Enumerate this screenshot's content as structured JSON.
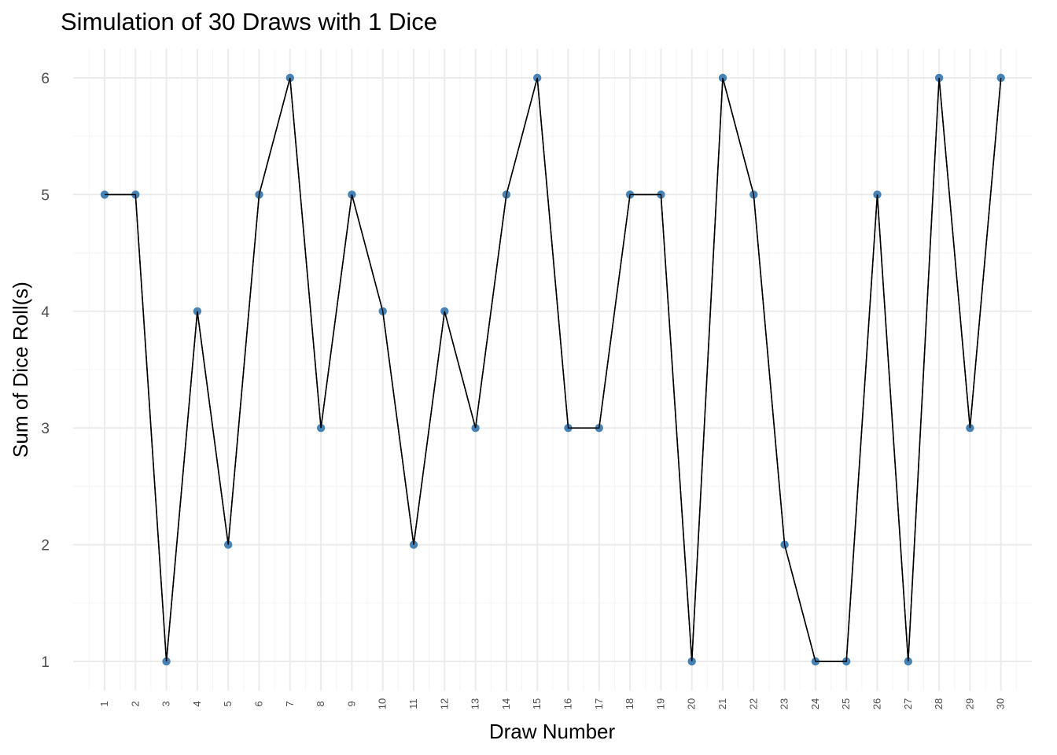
{
  "chart_data": {
    "type": "line",
    "title": "Simulation of 30 Draws with 1 Dice",
    "xlabel": "Draw Number",
    "ylabel": "Sum of Dice Roll(s)",
    "categories": [
      "1",
      "2",
      "3",
      "4",
      "5",
      "6",
      "7",
      "8",
      "9",
      "10",
      "11",
      "12",
      "13",
      "14",
      "15",
      "16",
      "17",
      "18",
      "19",
      "20",
      "21",
      "22",
      "23",
      "24",
      "25",
      "26",
      "27",
      "28",
      "29",
      "30"
    ],
    "values": [
      5,
      5,
      1,
      4,
      2,
      5,
      6,
      3,
      5,
      4,
      2,
      4,
      3,
      5,
      6,
      3,
      3,
      5,
      5,
      1,
      6,
      5,
      2,
      1,
      1,
      5,
      1,
      6,
      3,
      6
    ],
    "yticks": [
      1,
      2,
      3,
      4,
      5,
      6
    ],
    "ylim": [
      0.75,
      6.25
    ],
    "grid": true,
    "legend": "none",
    "colors": {
      "point": "#4682b4",
      "line": "#000000",
      "grid_major": "#ebebeb",
      "grid_minor": "#f5f5f5"
    }
  }
}
